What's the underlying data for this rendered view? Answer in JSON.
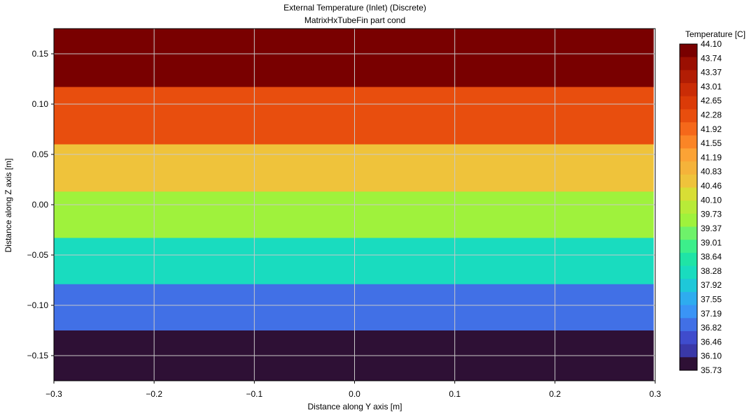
{
  "chart_data": {
    "type": "heatmap",
    "title": "External Temperature (Inlet) (Discrete)",
    "subtitle": "MatrixHxTubeFin part cond",
    "xlabel": "Distance along Y axis [m]",
    "ylabel": "Distance along Z axis [m]",
    "xlim": [
      -0.3,
      0.3
    ],
    "ylim": [
      -0.175,
      0.175
    ],
    "x_ticks": [
      {
        "value": -0.3,
        "label": "−0.3"
      },
      {
        "value": -0.2,
        "label": "−0.2"
      },
      {
        "value": -0.1,
        "label": "−0.1"
      },
      {
        "value": 0.0,
        "label": "0.0"
      },
      {
        "value": 0.1,
        "label": "0.1"
      },
      {
        "value": 0.2,
        "label": "0.2"
      },
      {
        "value": 0.3,
        "label": "0.3"
      }
    ],
    "y_ticks": [
      {
        "value": 0.15,
        "label": "0.15"
      },
      {
        "value": 0.1,
        "label": "0.10"
      },
      {
        "value": 0.05,
        "label": "0.05"
      },
      {
        "value": 0.0,
        "label": "0.00"
      },
      {
        "value": -0.05,
        "label": "−0.05"
      },
      {
        "value": -0.1,
        "label": "−0.10"
      },
      {
        "value": -0.15,
        "label": "−0.15"
      }
    ],
    "grid": true,
    "data_x_range": [
      -0.3,
      0.2985
    ],
    "bands": [
      {
        "z_min": 0.117,
        "z_max": 0.175,
        "value": 44.0,
        "color": "#790000"
      },
      {
        "z_min": 0.06,
        "z_max": 0.117,
        "value": 42.5,
        "color": "#e84e0e"
      },
      {
        "z_min": 0.013,
        "z_max": 0.06,
        "value": 41.0,
        "color": "#efc33b"
      },
      {
        "z_min": -0.033,
        "z_max": 0.013,
        "value": 40.2,
        "color": "#9ff23c"
      },
      {
        "z_min": -0.079,
        "z_max": -0.033,
        "value": 38.5,
        "color": "#19dcbf"
      },
      {
        "z_min": -0.125,
        "z_max": -0.079,
        "value": 37.0,
        "color": "#4170e6"
      },
      {
        "z_min": -0.175,
        "z_max": -0.125,
        "value": 35.9,
        "color": "#2e1035"
      }
    ],
    "colorbar": {
      "title": "Temperature [C]",
      "labels": [
        "44.10",
        "43.74",
        "43.37",
        "43.01",
        "42.65",
        "42.28",
        "41.92",
        "41.55",
        "41.19",
        "40.83",
        "40.46",
        "40.10",
        "39.73",
        "39.37",
        "39.01",
        "38.64",
        "38.28",
        "37.92",
        "37.55",
        "37.19",
        "36.82",
        "36.46",
        "36.10",
        "35.73"
      ],
      "colors": [
        "#790000",
        "#9a0f02",
        "#b21d04",
        "#ca2c06",
        "#db3b08",
        "#e84e0e",
        "#f5681a",
        "#fb8526",
        "#fca335",
        "#f5b33a",
        "#efc33b",
        "#d8de35",
        "#b8eb38",
        "#9ff23c",
        "#6ef26a",
        "#3cef8b",
        "#1fe4a6",
        "#19dcbf",
        "#1ec8d9",
        "#2eacef",
        "#3a94f6",
        "#4170e6",
        "#3f4ccd",
        "#3a38a8",
        "#2e1035"
      ],
      "legend_placement": "right"
    }
  }
}
